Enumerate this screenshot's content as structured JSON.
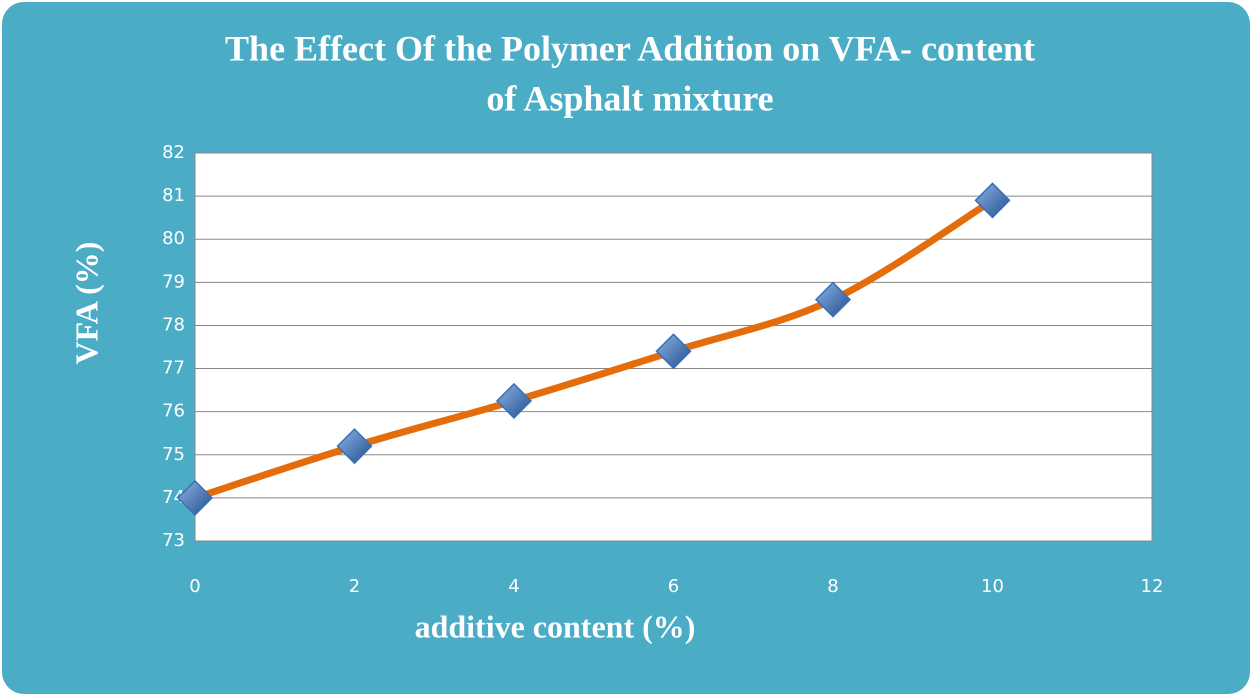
{
  "chart_data": {
    "type": "line",
    "title": [
      "The Effect Of the Polymer Addition on VFA- content",
      "of Asphalt mixture"
    ],
    "x_label": "additive content (%)",
    "y_label": "VFA (%)",
    "x": [
      0,
      2,
      4,
      6,
      8,
      10
    ],
    "values": [
      74,
      75.2,
      76.25,
      77.4,
      78.6,
      80.9
    ],
    "color": "#e46c0a",
    "marker_color": "#3a6fb5",
    "smooth": true,
    "xlim": [
      0,
      12
    ],
    "xticks": [
      0,
      2,
      4,
      6,
      8,
      10,
      12
    ],
    "ylim": [
      73,
      82
    ],
    "yticks": [
      73,
      74,
      75,
      76,
      77,
      78,
      79,
      80,
      81,
      82
    ],
    "grid": true
  }
}
